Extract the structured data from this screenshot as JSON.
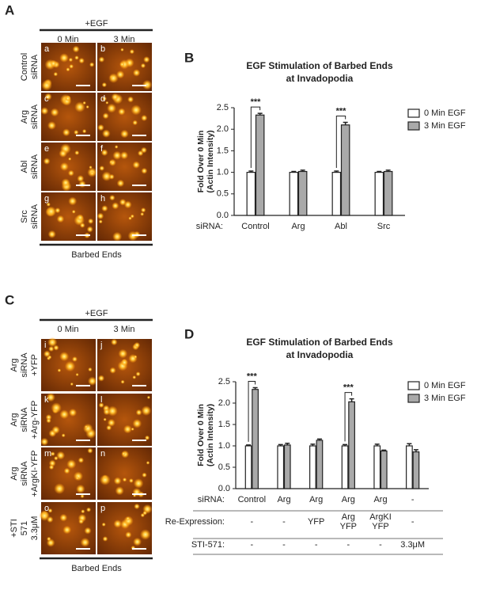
{
  "panel_a": {
    "label": "A",
    "condition": "+EGF",
    "columns": [
      "0 Min",
      "3 Min"
    ],
    "rows": [
      [
        "Control",
        "siRNA"
      ],
      [
        "Arg",
        "siRNA"
      ],
      [
        "Abl",
        "siRNA"
      ],
      [
        "Src",
        "siRNA"
      ]
    ],
    "images": [
      "a",
      "b",
      "c",
      "d",
      "e",
      "f",
      "g",
      "h"
    ],
    "footer": "Barbed Ends"
  },
  "panel_c": {
    "label": "C",
    "condition": "+EGF",
    "columns": [
      "0 Min",
      "3 Min"
    ],
    "rows": [
      [
        "Arg",
        "siRNA",
        "+YFP"
      ],
      [
        "Arg",
        "siRNA",
        "+Arg-YFP"
      ],
      [
        "Arg",
        "siRNA",
        "+ArgKI-YFP"
      ],
      [
        "+STI",
        "571",
        "3.3μM"
      ]
    ],
    "images": [
      "i",
      "j",
      "k",
      "l",
      "m",
      "n",
      "o",
      "p"
    ],
    "footer": "Barbed Ends"
  },
  "chart_data": [
    {
      "type": "bar",
      "panel_label": "B",
      "title": [
        "EGF Stimulation of Barbed Ends",
        "at Invadopodia"
      ],
      "y_label": [
        "Fold Over 0 Min",
        "(Actin Intensity)"
      ],
      "x_label": "siRNA:",
      "categories": [
        "Control",
        "Arg",
        "Abl",
        "Src"
      ],
      "series": [
        {
          "name": "0 Min EGF",
          "color": "#ffffff",
          "values": [
            1.0,
            1.0,
            1.0,
            1.0
          ],
          "errors": [
            0.03,
            0.02,
            0.03,
            0.02
          ]
        },
        {
          "name": "3 Min EGF",
          "color": "#a9a9a9",
          "values": [
            2.33,
            1.02,
            2.1,
            1.02
          ],
          "errors": [
            0.04,
            0.03,
            0.06,
            0.03
          ]
        }
      ],
      "annotations": [
        {
          "text": "***",
          "category": 0
        },
        {
          "text": "***",
          "category": 2
        }
      ],
      "ylim": [
        0,
        2.5
      ],
      "yticks": [
        {
          "value": 0,
          "label": "0.0"
        },
        0.5,
        {
          "value": 1,
          "label": "1.0"
        },
        1.5,
        {
          "value": 2,
          "label": "2.0"
        },
        2.5
      ]
    },
    {
      "type": "bar",
      "panel_label": "D",
      "title": [
        "EGF Stimulation of Barbed Ends",
        "at Invadopodia"
      ],
      "y_label": [
        "Fold Over 0 Min",
        "(Actin Intensity)"
      ],
      "x_label": "siRNA:",
      "categories": [
        "Control",
        "Arg",
        "Arg",
        "Arg",
        "Arg",
        "-"
      ],
      "series": [
        {
          "name": "0 Min EGF",
          "color": "#ffffff",
          "values": [
            1.0,
            1.0,
            1.0,
            1.0,
            1.0,
            1.0
          ],
          "errors": [
            0.02,
            0.03,
            0.04,
            0.03,
            0.04,
            0.05
          ]
        },
        {
          "name": "3 Min EGF",
          "color": "#a9a9a9",
          "values": [
            2.32,
            1.02,
            1.13,
            2.03,
            0.88,
            0.86
          ],
          "errors": [
            0.04,
            0.04,
            0.03,
            0.07,
            0.02,
            0.05
          ]
        }
      ],
      "rows": [
        {
          "label": "Re-Expression:",
          "values": [
            [
              "-"
            ],
            [
              "-"
            ],
            [
              "YFP"
            ],
            [
              "Arg",
              "YFP"
            ],
            [
              "ArgKI",
              "YFP"
            ],
            [
              "-"
            ]
          ]
        },
        {
          "label": "STI-571:",
          "values": [
            [
              "-"
            ],
            [
              "-"
            ],
            [
              "-"
            ],
            [
              "-"
            ],
            [
              "-"
            ],
            [
              "3.3μM"
            ]
          ]
        }
      ],
      "annotations": [
        {
          "text": "***",
          "category": 0
        },
        {
          "text": "***",
          "category": 3
        }
      ],
      "ylim": [
        0,
        2.5
      ],
      "yticks": [
        {
          "value": 0,
          "label": "0.0"
        },
        0.5,
        {
          "value": 1,
          "label": "1.0"
        },
        1.5,
        {
          "value": 2,
          "label": "2.0"
        },
        2.5
      ]
    }
  ]
}
